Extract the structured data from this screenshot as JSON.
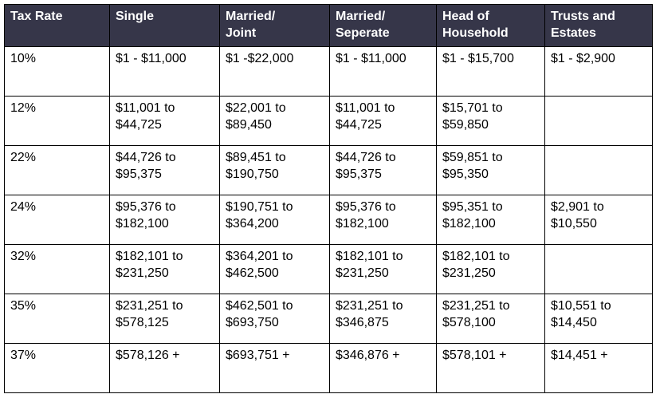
{
  "colors": {
    "header_bg": "#363649",
    "header_text": "#ffffff",
    "body_text": "#000000",
    "border": "#000000",
    "page_bg": "#ffffff"
  },
  "table": {
    "columns": [
      "Tax Rate",
      "Single",
      "Married/\nJoint",
      "Married/\nSeperate",
      "Head of\nHousehold",
      "Trusts and\nEstates"
    ],
    "rows": [
      {
        "rate": "10%",
        "cells": [
          "$1 - $11,000",
          "$1 -$22,000",
          "$1 - $11,000",
          "$1 - $15,700",
          "$1 - $2,900"
        ]
      },
      {
        "rate": "12%",
        "cells": [
          "$11,001 to\n$44,725",
          "$22,001 to\n$89,450",
          "$11,001 to\n$44,725",
          "$15,701 to\n$59,850",
          ""
        ]
      },
      {
        "rate": "22%",
        "cells": [
          "$44,726 to\n$95,375",
          "$89,451 to\n$190,750",
          "$44,726 to\n$95,375",
          "$59,851 to\n$95,350",
          ""
        ]
      },
      {
        "rate": "24%",
        "cells": [
          "$95,376 to\n$182,100",
          "$190,751 to\n$364,200",
          "$95,376 to\n$182,100",
          "$95,351 to\n$182,100",
          "$2,901 to\n$10,550"
        ]
      },
      {
        "rate": "32%",
        "cells": [
          "$182,101 to\n$231,250",
          "$364,201 to\n$462,500",
          "$182,101 to\n$231,250",
          "$182,101 to\n$231,250",
          ""
        ]
      },
      {
        "rate": "35%",
        "cells": [
          "$231,251 to\n$578,125",
          "$462,501 to\n$693,750",
          "$231,251 to\n$346,875",
          "$231,251 to\n$578,100",
          "$10,551 to\n$14,450"
        ]
      },
      {
        "rate": "37%",
        "cells": [
          "$578,126 +",
          "$693,751 +",
          "$346,876 +",
          "$578,101 +",
          "$14,451 +"
        ]
      }
    ]
  }
}
